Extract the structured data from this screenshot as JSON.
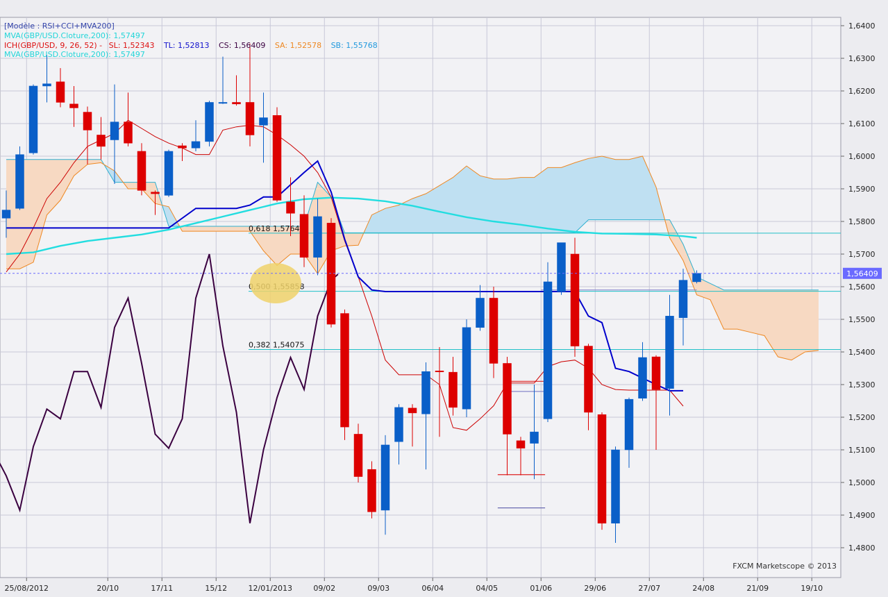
{
  "chart_data": {
    "type": "candlestick",
    "legend": {
      "model": "[Modèle : RSI+CCI+MVA200]",
      "mva_line1": "MVA(GBP/USD.Cloture,200): 1,57497",
      "ich_label": "ICH(GBP/USD, 9, 26, 52) -",
      "sl": "SL: 1,52343",
      "tl": "TL: 1,52813",
      "cs": "CS: 1,56409",
      "sa": "SA: 1,52578",
      "sb": "SB: 1,55768",
      "mva_line2": "MVA(GBP/USD.Cloture,200): 1,57497"
    },
    "colors": {
      "bull": "#0a5fc8",
      "bear": "#dd0000",
      "tenkan": "#cc0000",
      "kijun": "#0000cc",
      "mva": "#22dde0",
      "chikou": "#3a0040",
      "senkou": "#ee8822",
      "cloud_bull": "#bfe0f2",
      "cloud_bear": "#f7d9c2",
      "fib": "#20c0c8",
      "price_marker": "#6a6aff"
    },
    "ylim": [
      1.476,
      1.642
    ],
    "y_ticks": [
      "1,4800",
      "1,4900",
      "1,5000",
      "1,5100",
      "1,5200",
      "1,5300",
      "1,5400",
      "1,5500",
      "1,5600",
      "1,5700",
      "1,5800",
      "1,5900",
      "1,6000",
      "1,6100",
      "1,6200",
      "1,6300",
      "1,6400"
    ],
    "x_ticks": [
      {
        "i": 1.5,
        "label": "25/08/2012"
      },
      {
        "i": 7.5,
        "label": "20/10"
      },
      {
        "i": 11.5,
        "label": "17/11"
      },
      {
        "i": 15.5,
        "label": "15/12"
      },
      {
        "i": 19.5,
        "label": "12/01/2013"
      },
      {
        "i": 23.5,
        "label": "09/02"
      },
      {
        "i": 27.5,
        "label": "09/03"
      },
      {
        "i": 31.5,
        "label": "06/04"
      },
      {
        "i": 35.5,
        "label": "04/05"
      },
      {
        "i": 39.5,
        "label": "01/06"
      },
      {
        "i": 43.5,
        "label": "29/06"
      },
      {
        "i": 47.5,
        "label": "27/07"
      },
      {
        "i": 51.5,
        "label": "24/08"
      },
      {
        "i": 55.5,
        "label": "21/09"
      },
      {
        "i": 59.5,
        "label": "19/10"
      }
    ],
    "candles": [
      {
        "o": 1.581,
        "h": 1.5895,
        "l": 1.575,
        "c": 1.5835
      },
      {
        "o": 1.584,
        "h": 1.603,
        "l": 1.5835,
        "c": 1.6005
      },
      {
        "o": 1.601,
        "h": 1.622,
        "l": 1.6005,
        "c": 1.6215
      },
      {
        "o": 1.6215,
        "h": 1.631,
        "l": 1.6165,
        "c": 1.6222
      },
      {
        "o": 1.6228,
        "h": 1.627,
        "l": 1.615,
        "c": 1.6165
      },
      {
        "o": 1.616,
        "h": 1.6215,
        "l": 1.609,
        "c": 1.6148
      },
      {
        "o": 1.6135,
        "h": 1.6152,
        "l": 1.5975,
        "c": 1.608
      },
      {
        "o": 1.6065,
        "h": 1.612,
        "l": 1.599,
        "c": 1.603
      },
      {
        "o": 1.605,
        "h": 1.622,
        "l": 1.5915,
        "c": 1.6105
      },
      {
        "o": 1.6105,
        "h": 1.6195,
        "l": 1.603,
        "c": 1.604
      },
      {
        "o": 1.6015,
        "h": 1.604,
        "l": 1.588,
        "c": 1.5895
      },
      {
        "o": 1.589,
        "h": 1.5895,
        "l": 1.582,
        "c": 1.5885
      },
      {
        "o": 1.588,
        "h": 1.602,
        "l": 1.5875,
        "c": 1.6015
      },
      {
        "o": 1.6032,
        "h": 1.604,
        "l": 1.5985,
        "c": 1.6025
      },
      {
        "o": 1.6025,
        "h": 1.611,
        "l": 1.6015,
        "c": 1.6045
      },
      {
        "o": 1.6045,
        "h": 1.617,
        "l": 1.603,
        "c": 1.6165
      },
      {
        "o": 1.6165,
        "h": 1.6305,
        "l": 1.616,
        "c": 1.6165
      },
      {
        "o": 1.6165,
        "h": 1.6248,
        "l": 1.6155,
        "c": 1.616
      },
      {
        "o": 1.6165,
        "h": 1.6345,
        "l": 1.603,
        "c": 1.6065
      },
      {
        "o": 1.6095,
        "h": 1.6195,
        "l": 1.598,
        "c": 1.6118
      },
      {
        "o": 1.6125,
        "h": 1.615,
        "l": 1.586,
        "c": 1.5865
      },
      {
        "o": 1.586,
        "h": 1.5935,
        "l": 1.5755,
        "c": 1.5825
      },
      {
        "o": 1.5822,
        "h": 1.588,
        "l": 1.566,
        "c": 1.569
      },
      {
        "o": 1.569,
        "h": 1.587,
        "l": 1.5635,
        "c": 1.5815
      },
      {
        "o": 1.5795,
        "h": 1.581,
        "l": 1.5475,
        "c": 1.5485
      },
      {
        "o": 1.5518,
        "h": 1.553,
        "l": 1.513,
        "c": 1.517
      },
      {
        "o": 1.5148,
        "h": 1.518,
        "l": 1.5,
        "c": 1.5018
      },
      {
        "o": 1.504,
        "h": 1.5065,
        "l": 1.489,
        "c": 1.491
      },
      {
        "o": 1.4915,
        "h": 1.5145,
        "l": 1.484,
        "c": 1.5115
      },
      {
        "o": 1.5125,
        "h": 1.524,
        "l": 1.5055,
        "c": 1.523
      },
      {
        "o": 1.5228,
        "h": 1.524,
        "l": 1.511,
        "c": 1.5213
      },
      {
        "o": 1.521,
        "h": 1.5368,
        "l": 1.504,
        "c": 1.534
      },
      {
        "o": 1.5342,
        "h": 1.5415,
        "l": 1.514,
        "c": 1.534
      },
      {
        "o": 1.5338,
        "h": 1.5385,
        "l": 1.5205,
        "c": 1.523
      },
      {
        "o": 1.5225,
        "h": 1.55,
        "l": 1.52,
        "c": 1.5475
      },
      {
        "o": 1.5475,
        "h": 1.5605,
        "l": 1.5465,
        "c": 1.5565
      },
      {
        "o": 1.5565,
        "h": 1.56,
        "l": 1.532,
        "c": 1.5365
      },
      {
        "o": 1.5365,
        "h": 1.5385,
        "l": 1.5022,
        "c": 1.5148
      },
      {
        "o": 1.5128,
        "h": 1.514,
        "l": 1.5022,
        "c": 1.5105
      },
      {
        "o": 1.512,
        "h": 1.53,
        "l": 1.501,
        "c": 1.5155
      },
      {
        "o": 1.5195,
        "h": 1.5675,
        "l": 1.5185,
        "c": 1.5615
      },
      {
        "o": 1.5585,
        "h": 1.5725,
        "l": 1.5575,
        "c": 1.5735
      },
      {
        "o": 1.57,
        "h": 1.575,
        "l": 1.5385,
        "c": 1.5418
      },
      {
        "o": 1.5418,
        "h": 1.5425,
        "l": 1.516,
        "c": 1.5215
      },
      {
        "o": 1.5208,
        "h": 1.5215,
        "l": 1.4855,
        "c": 1.4875
      },
      {
        "o": 1.4875,
        "h": 1.511,
        "l": 1.4815,
        "c": 1.51
      },
      {
        "o": 1.51,
        "h": 1.526,
        "l": 1.5045,
        "c": 1.5255
      },
      {
        "o": 1.5258,
        "h": 1.543,
        "l": 1.525,
        "c": 1.5383
      },
      {
        "o": 1.5385,
        "h": 1.539,
        "l": 1.51,
        "c": 1.5285
      },
      {
        "o": 1.5288,
        "h": 1.5575,
        "l": 1.5205,
        "c": 1.551
      },
      {
        "o": 1.5505,
        "h": 1.5655,
        "l": 1.542,
        "c": 1.562
      },
      {
        "o": 1.5615,
        "h": 1.565,
        "l": 1.561,
        "c": 1.5641
      }
    ],
    "tenkan": [
      {
        "i": 0,
        "v": 1.5645
      },
      {
        "i": 1,
        "v": 1.57
      },
      {
        "i": 2,
        "v": 1.578
      },
      {
        "i": 3,
        "v": 1.587
      },
      {
        "i": 4,
        "v": 1.592
      },
      {
        "i": 5,
        "v": 1.598
      },
      {
        "i": 6,
        "v": 1.603
      },
      {
        "i": 7,
        "v": 1.605
      },
      {
        "i": 8,
        "v": 1.607
      },
      {
        "i": 9,
        "v": 1.611
      },
      {
        "i": 10,
        "v": 1.6085
      },
      {
        "i": 11,
        "v": 1.606
      },
      {
        "i": 12,
        "v": 1.604
      },
      {
        "i": 13,
        "v": 1.6025
      },
      {
        "i": 14,
        "v": 1.6005
      },
      {
        "i": 15,
        "v": 1.6005
      },
      {
        "i": 16,
        "v": 1.608
      },
      {
        "i": 17,
        "v": 1.609
      },
      {
        "i": 18,
        "v": 1.6095
      },
      {
        "i": 19,
        "v": 1.609
      },
      {
        "i": 20,
        "v": 1.6065
      },
      {
        "i": 21,
        "v": 1.6035
      },
      {
        "i": 22,
        "v": 1.6
      },
      {
        "i": 23,
        "v": 1.595
      },
      {
        "i": 24,
        "v": 1.5875
      },
      {
        "i": 25,
        "v": 1.574
      },
      {
        "i": 26,
        "v": 1.563
      },
      {
        "i": 27,
        "v": 1.551
      },
      {
        "i": 28,
        "v": 1.5375
      },
      {
        "i": 29,
        "v": 1.533
      },
      {
        "i": 30,
        "v": 1.533
      },
      {
        "i": 31,
        "v": 1.533
      },
      {
        "i": 32,
        "v": 1.53
      },
      {
        "i": 33,
        "v": 1.5168
      },
      {
        "i": 34,
        "v": 1.516
      },
      {
        "i": 35,
        "v": 1.5195
      },
      {
        "i": 36,
        "v": 1.5235
      },
      {
        "i": 37,
        "v": 1.5305
      },
      {
        "i": 38,
        "v": 1.5305
      },
      {
        "i": 39,
        "v": 1.5305
      },
      {
        "i": 40,
        "v": 1.5355
      },
      {
        "i": 41,
        "v": 1.537
      },
      {
        "i": 42,
        "v": 1.5375
      },
      {
        "i": 43,
        "v": 1.535
      },
      {
        "i": 44,
        "v": 1.53
      },
      {
        "i": 45,
        "v": 1.5285
      },
      {
        "i": 46,
        "v": 1.5283
      },
      {
        "i": 47,
        "v": 1.5283
      },
      {
        "i": 48,
        "v": 1.5283
      },
      {
        "i": 49,
        "v": 1.5283
      },
      {
        "i": 50,
        "v": 1.5234
      }
    ],
    "kijun": [
      {
        "i": 0,
        "v": 1.578
      },
      {
        "i": 12,
        "v": 1.578
      },
      {
        "i": 14,
        "v": 1.584
      },
      {
        "i": 17,
        "v": 1.584
      },
      {
        "i": 18,
        "v": 1.585
      },
      {
        "i": 19,
        "v": 1.5875
      },
      {
        "i": 20,
        "v": 1.5875
      },
      {
        "i": 22,
        "v": 1.595
      },
      {
        "i": 23,
        "v": 1.5985
      },
      {
        "i": 24,
        "v": 1.589
      },
      {
        "i": 25,
        "v": 1.5745
      },
      {
        "i": 26,
        "v": 1.563
      },
      {
        "i": 27,
        "v": 1.559
      },
      {
        "i": 28,
        "v": 1.5585
      },
      {
        "i": 42,
        "v": 1.5585
      },
      {
        "i": 43,
        "v": 1.551
      },
      {
        "i": 44,
        "v": 1.549
      },
      {
        "i": 45,
        "v": 1.535
      },
      {
        "i": 46,
        "v": 1.534
      },
      {
        "i": 47,
        "v": 1.532
      },
      {
        "i": 48,
        "v": 1.53
      },
      {
        "i": 49,
        "v": 1.5281
      },
      {
        "i": 50,
        "v": 1.5281
      }
    ],
    "mva": [
      {
        "i": 0,
        "v": 1.57
      },
      {
        "i": 2,
        "v": 1.5705
      },
      {
        "i": 4,
        "v": 1.5725
      },
      {
        "i": 6,
        "v": 1.574
      },
      {
        "i": 8,
        "v": 1.575
      },
      {
        "i": 10,
        "v": 1.576
      },
      {
        "i": 12,
        "v": 1.5775
      },
      {
        "i": 14,
        "v": 1.5795
      },
      {
        "i": 16,
        "v": 1.5815
      },
      {
        "i": 18,
        "v": 1.5835
      },
      {
        "i": 20,
        "v": 1.5855
      },
      {
        "i": 22,
        "v": 1.5868
      },
      {
        "i": 24,
        "v": 1.5873
      },
      {
        "i": 26,
        "v": 1.587
      },
      {
        "i": 28,
        "v": 1.5862
      },
      {
        "i": 30,
        "v": 1.5848
      },
      {
        "i": 32,
        "v": 1.583
      },
      {
        "i": 34,
        "v": 1.5813
      },
      {
        "i": 36,
        "v": 1.58
      },
      {
        "i": 38,
        "v": 1.579
      },
      {
        "i": 40,
        "v": 1.5778
      },
      {
        "i": 42,
        "v": 1.5768
      },
      {
        "i": 44,
        "v": 1.5763
      },
      {
        "i": 46,
        "v": 1.5762
      },
      {
        "i": 48,
        "v": 1.576
      },
      {
        "i": 50,
        "v": 1.5755
      },
      {
        "i": 51,
        "v": 1.575
      }
    ],
    "chikou": [
      {
        "i": -1,
        "v": 1.51
      },
      {
        "i": 0,
        "v": 1.502
      },
      {
        "i": 1,
        "v": 1.4915
      },
      {
        "i": 2,
        "v": 1.511
      },
      {
        "i": 3,
        "v": 1.5225
      },
      {
        "i": 4,
        "v": 1.5195
      },
      {
        "i": 5,
        "v": 1.534
      },
      {
        "i": 6,
        "v": 1.534
      },
      {
        "i": 7,
        "v": 1.523
      },
      {
        "i": 8,
        "v": 1.5475
      },
      {
        "i": 9,
        "v": 1.5565
      },
      {
        "i": 10,
        "v": 1.5365
      },
      {
        "i": 11,
        "v": 1.5148
      },
      {
        "i": 12,
        "v": 1.5105
      },
      {
        "i": 13,
        "v": 1.5195
      },
      {
        "i": 14,
        "v": 1.5565
      },
      {
        "i": 15,
        "v": 1.57
      },
      {
        "i": 16,
        "v": 1.5418
      },
      {
        "i": 17,
        "v": 1.5215
      },
      {
        "i": 18,
        "v": 1.4875
      },
      {
        "i": 19,
        "v": 1.51
      },
      {
        "i": 20,
        "v": 1.526
      },
      {
        "i": 21,
        "v": 1.5383
      },
      {
        "i": 22,
        "v": 1.5285
      },
      {
        "i": 23,
        "v": 1.551
      },
      {
        "i": 24,
        "v": 1.562
      },
      {
        "i": 24.5,
        "v": 1.5638
      }
    ],
    "senkou_a": [
      {
        "i": 0,
        "v": 1.5655
      },
      {
        "i": 1,
        "v": 1.5655
      },
      {
        "i": 2,
        "v": 1.5675
      },
      {
        "i": 3,
        "v": 1.582
      },
      {
        "i": 4,
        "v": 1.5865
      },
      {
        "i": 5,
        "v": 1.594
      },
      {
        "i": 6,
        "v": 1.5975
      },
      {
        "i": 7,
        "v": 1.598
      },
      {
        "i": 8,
        "v": 1.5955
      },
      {
        "i": 9,
        "v": 1.59
      },
      {
        "i": 10,
        "v": 1.59
      },
      {
        "i": 11,
        "v": 1.5855
      },
      {
        "i": 12,
        "v": 1.5845
      },
      {
        "i": 13,
        "v": 1.577
      },
      {
        "i": 14,
        "v": 1.577
      },
      {
        "i": 15,
        "v": 1.577
      },
      {
        "i": 16,
        "v": 1.577
      },
      {
        "i": 17,
        "v": 1.577
      },
      {
        "i": 18,
        "v": 1.577
      },
      {
        "i": 19,
        "v": 1.571
      },
      {
        "i": 20,
        "v": 1.5665
      },
      {
        "i": 21,
        "v": 1.57
      },
      {
        "i": 22,
        "v": 1.57
      },
      {
        "i": 23,
        "v": 1.564
      },
      {
        "i": 24,
        "v": 1.571
      },
      {
        "i": 25,
        "v": 1.5725
      },
      {
        "i": 26,
        "v": 1.5727
      },
      {
        "i": 27,
        "v": 1.582
      },
      {
        "i": 28,
        "v": 1.584
      },
      {
        "i": 29,
        "v": 1.585
      },
      {
        "i": 30,
        "v": 1.587
      },
      {
        "i": 31,
        "v": 1.5885
      },
      {
        "i": 32,
        "v": 1.591
      },
      {
        "i": 33,
        "v": 1.5935
      },
      {
        "i": 34,
        "v": 1.597
      },
      {
        "i": 35,
        "v": 1.594
      },
      {
        "i": 36,
        "v": 1.593
      },
      {
        "i": 37,
        "v": 1.593
      },
      {
        "i": 38,
        "v": 1.5935
      },
      {
        "i": 39,
        "v": 1.5935
      },
      {
        "i": 40,
        "v": 1.5965
      },
      {
        "i": 41,
        "v": 1.5965
      },
      {
        "i": 42,
        "v": 1.598
      },
      {
        "i": 43,
        "v": 1.5993
      },
      {
        "i": 44,
        "v": 1.6
      },
      {
        "i": 45,
        "v": 1.599
      },
      {
        "i": 46,
        "v": 1.599
      },
      {
        "i": 47,
        "v": 1.6
      },
      {
        "i": 48,
        "v": 1.5905
      },
      {
        "i": 49,
        "v": 1.575
      },
      {
        "i": 50,
        "v": 1.568
      },
      {
        "i": 51,
        "v": 1.5575
      },
      {
        "i": 52,
        "v": 1.556
      },
      {
        "i": 53,
        "v": 1.547
      },
      {
        "i": 54,
        "v": 1.547
      },
      {
        "i": 55,
        "v": 1.546
      },
      {
        "i": 56,
        "v": 1.545
      },
      {
        "i": 57,
        "v": 1.5385
      },
      {
        "i": 58,
        "v": 1.5375
      },
      {
        "i": 59,
        "v": 1.54
      },
      {
        "i": 60,
        "v": 1.5405
      }
    ],
    "senkou_b": [
      {
        "i": 0,
        "v": 1.599
      },
      {
        "i": 7,
        "v": 1.599
      },
      {
        "i": 8,
        "v": 1.592
      },
      {
        "i": 11,
        "v": 1.592
      },
      {
        "i": 12,
        "v": 1.5785
      },
      {
        "i": 22,
        "v": 1.5785
      },
      {
        "i": 23,
        "v": 1.592
      },
      {
        "i": 24,
        "v": 1.5875
      },
      {
        "i": 25,
        "v": 1.5765
      },
      {
        "i": 42,
        "v": 1.5765
      },
      {
        "i": 43,
        "v": 1.5805
      },
      {
        "i": 49,
        "v": 1.5805
      },
      {
        "i": 50,
        "v": 1.573
      },
      {
        "i": 51,
        "v": 1.563
      },
      {
        "i": 52,
        "v": 1.561
      },
      {
        "i": 53,
        "v": 1.559
      },
      {
        "i": 60,
        "v": 1.559
      }
    ],
    "fib_levels": [
      {
        "label": "0,618 1,57641",
        "value": 1.57641
      },
      {
        "label": "0,500 1,55858",
        "value": 1.55858
      },
      {
        "label": "0,382 1,54075",
        "value": 1.54075
      }
    ],
    "current_price": {
      "value": 1.56409,
      "label": "1,56409"
    },
    "watermark": "FXCM Marketscope © 2013"
  }
}
